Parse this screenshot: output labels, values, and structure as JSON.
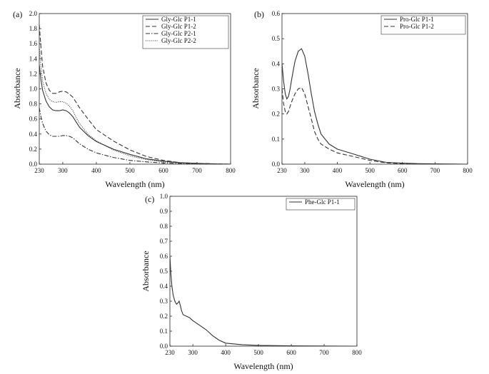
{
  "chart_data": [
    {
      "type": "line",
      "panel_label": "(a)",
      "xlabel": "Wavelength (nm)",
      "ylabel": "Absorbance",
      "xlim": [
        230,
        800
      ],
      "ylim": [
        0,
        2.0
      ],
      "x_ticks": [
        230,
        300,
        400,
        500,
        600,
        700,
        800
      ],
      "y_ticks": [
        0.0,
        0.2,
        0.4,
        0.6,
        0.8,
        1.0,
        1.2,
        1.4,
        1.6,
        1.8,
        2.0
      ],
      "legend_position": "top-right",
      "series": [
        {
          "name": "Gly-Glc P1-1",
          "style": "solid",
          "x": [
            230,
            235,
            240,
            250,
            260,
            270,
            280,
            290,
            300,
            310,
            320,
            330,
            340,
            350,
            375,
            400,
            450,
            500,
            550,
            600,
            650,
            700,
            750,
            800
          ],
          "y": [
            1.32,
            1.12,
            0.98,
            0.84,
            0.76,
            0.72,
            0.71,
            0.71,
            0.72,
            0.71,
            0.68,
            0.63,
            0.56,
            0.49,
            0.38,
            0.3,
            0.2,
            0.13,
            0.07,
            0.04,
            0.02,
            0.01,
            0.005,
            0.0
          ]
        },
        {
          "name": "Gly-Glc P1-2",
          "style": "dashed",
          "x": [
            230,
            235,
            240,
            250,
            260,
            270,
            280,
            290,
            300,
            310,
            320,
            330,
            340,
            350,
            375,
            400,
            450,
            500,
            550,
            600,
            650,
            700,
            750,
            800
          ],
          "y": [
            1.85,
            1.55,
            1.3,
            1.08,
            0.98,
            0.94,
            0.94,
            0.96,
            0.97,
            0.96,
            0.93,
            0.89,
            0.82,
            0.75,
            0.6,
            0.46,
            0.31,
            0.19,
            0.1,
            0.05,
            0.02,
            0.01,
            0.005,
            0.0
          ]
        },
        {
          "name": "Gly-Glc P2-1",
          "style": "dashdot",
          "x": [
            230,
            235,
            240,
            250,
            260,
            270,
            280,
            290,
            300,
            310,
            320,
            330,
            340,
            350,
            375,
            400,
            450,
            500,
            550,
            600,
            650,
            700,
            750,
            800
          ],
          "y": [
            0.75,
            0.63,
            0.54,
            0.44,
            0.39,
            0.37,
            0.37,
            0.37,
            0.38,
            0.38,
            0.37,
            0.35,
            0.31,
            0.27,
            0.2,
            0.15,
            0.09,
            0.05,
            0.03,
            0.015,
            0.01,
            0.005,
            0.0,
            0.0
          ]
        },
        {
          "name": "Gly-Glc P2-2",
          "style": "dotted",
          "x": [
            230,
            235,
            240,
            250,
            260,
            270,
            280,
            290,
            300,
            310,
            320,
            330,
            340,
            350,
            375,
            400,
            450,
            500,
            550,
            600,
            650,
            700,
            750,
            800
          ],
          "y": [
            1.55,
            1.3,
            1.1,
            0.94,
            0.86,
            0.83,
            0.82,
            0.83,
            0.83,
            0.81,
            0.77,
            0.71,
            0.62,
            0.54,
            0.4,
            0.31,
            0.19,
            0.11,
            0.06,
            0.03,
            0.015,
            0.005,
            0.0,
            0.0
          ]
        }
      ]
    },
    {
      "type": "line",
      "panel_label": "(b)",
      "xlabel": "Wavelength (nm)",
      "ylabel": "Absorbance",
      "xlim": [
        230,
        800
      ],
      "ylim": [
        0,
        0.6
      ],
      "x_ticks": [
        230,
        300,
        400,
        500,
        600,
        700,
        800
      ],
      "y_ticks": [
        0.0,
        0.1,
        0.2,
        0.3,
        0.4,
        0.5,
        0.6
      ],
      "legend_position": "top-right",
      "series": [
        {
          "name": "Pro-Glc P1-1",
          "style": "solid",
          "x": [
            230,
            235,
            240,
            245,
            250,
            255,
            260,
            270,
            280,
            290,
            300,
            310,
            320,
            330,
            340,
            350,
            375,
            400,
            450,
            500,
            550,
            600,
            650,
            700,
            800
          ],
          "y": [
            0.4,
            0.33,
            0.28,
            0.26,
            0.27,
            0.3,
            0.34,
            0.41,
            0.45,
            0.46,
            0.43,
            0.36,
            0.28,
            0.21,
            0.16,
            0.12,
            0.08,
            0.06,
            0.04,
            0.02,
            0.007,
            0.004,
            0.002,
            0.001,
            0.0
          ]
        },
        {
          "name": "Pro-Glc P1-2",
          "style": "dashed",
          "x": [
            230,
            235,
            240,
            245,
            250,
            255,
            260,
            270,
            280,
            290,
            300,
            310,
            320,
            330,
            340,
            350,
            375,
            400,
            450,
            500,
            550,
            600,
            650,
            700,
            800
          ],
          "y": [
            0.3,
            0.24,
            0.21,
            0.2,
            0.21,
            0.23,
            0.25,
            0.28,
            0.3,
            0.305,
            0.28,
            0.23,
            0.18,
            0.13,
            0.1,
            0.08,
            0.06,
            0.045,
            0.03,
            0.015,
            0.005,
            0.002,
            0.001,
            0.0,
            0.0
          ]
        }
      ]
    },
    {
      "type": "line",
      "panel_label": "(c)",
      "xlabel": "Wavelength (nm)",
      "ylabel": "Absorbance",
      "xlim": [
        230,
        800
      ],
      "ylim": [
        0,
        1.0
      ],
      "x_ticks": [
        230,
        300,
        400,
        500,
        600,
        700,
        800
      ],
      "y_ticks": [
        0.0,
        0.1,
        0.2,
        0.3,
        0.4,
        0.5,
        0.6,
        0.7,
        0.8,
        0.9,
        1.0
      ],
      "legend_position": "top-right",
      "series": [
        {
          "name": "Phe-Glc P1-1",
          "style": "solid",
          "x": [
            230,
            233,
            236,
            240,
            245,
            250,
            255,
            258,
            262,
            265,
            270,
            280,
            290,
            300,
            320,
            340,
            360,
            380,
            400,
            450,
            500,
            600,
            700,
            800
          ],
          "y": [
            0.6,
            0.48,
            0.4,
            0.34,
            0.3,
            0.28,
            0.29,
            0.3,
            0.27,
            0.24,
            0.21,
            0.2,
            0.19,
            0.17,
            0.14,
            0.11,
            0.07,
            0.04,
            0.02,
            0.01,
            0.005,
            0.002,
            0.001,
            0.0
          ]
        }
      ]
    }
  ]
}
